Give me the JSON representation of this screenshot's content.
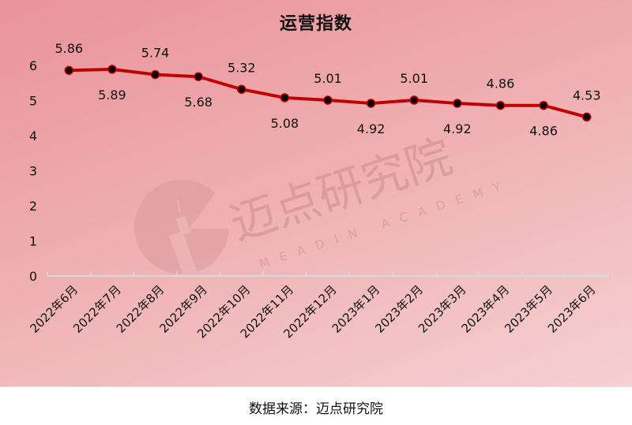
{
  "title": "运营指数",
  "footer": "数据来源：迈点研究院",
  "watermark": {
    "cn": "迈点研究院",
    "en": "MEADIN ACADEMY"
  },
  "colors": {
    "line": "#c00000",
    "marker": "#000000",
    "axis": "#d9d9d9",
    "text": "#111111"
  },
  "chart_data": {
    "type": "line",
    "title": "运营指数",
    "xlabel": "",
    "ylabel": "",
    "ylim": [
      0,
      6
    ],
    "yticks": [
      0,
      1,
      2,
      3,
      4,
      5,
      6
    ],
    "grid": false,
    "legend": null,
    "categories": [
      "2022年6月",
      "2022年7月",
      "2022年8月",
      "2022年9月",
      "2022年10月",
      "2022年11月",
      "2022年12月",
      "2023年1月",
      "2023年2月",
      "2023年3月",
      "2023年4月",
      "2023年5月",
      "2023年6月"
    ],
    "series": [
      {
        "name": "运营指数",
        "values": [
          5.86,
          5.89,
          5.74,
          5.68,
          5.32,
          5.08,
          5.01,
          4.92,
          5.01,
          4.92,
          4.86,
          4.86,
          4.53
        ],
        "label_positions": [
          "above",
          "below",
          "above",
          "below",
          "above",
          "below",
          "above",
          "below",
          "above",
          "below",
          "above",
          "below",
          "above"
        ]
      }
    ],
    "source": "数据来源：迈点研究院"
  }
}
